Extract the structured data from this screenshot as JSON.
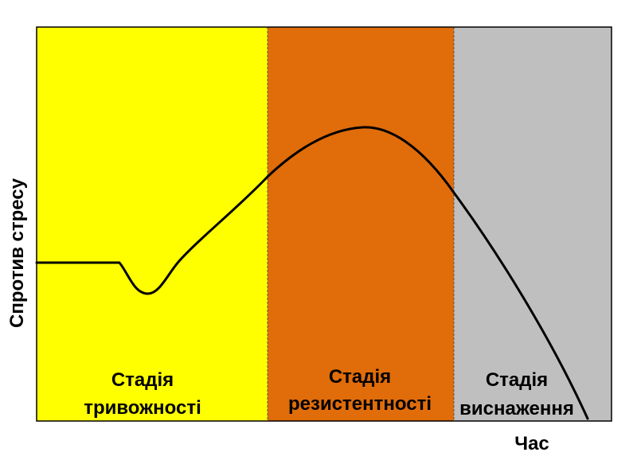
{
  "axes": {
    "y_label": "Спротив стресу",
    "x_label": "Час"
  },
  "stages": [
    {
      "line1": "Стадія",
      "line2": "тривожності",
      "color": "#ffff00"
    },
    {
      "line1": "Стадія",
      "line2": "резистентності",
      "color": "#e06c0a"
    },
    {
      "line1": "Стадія",
      "line2": "виснаження",
      "color": "#bfbfbf"
    }
  ],
  "colors": {
    "curve": "#000000",
    "frame": "#000000",
    "divider": "#555555"
  }
}
